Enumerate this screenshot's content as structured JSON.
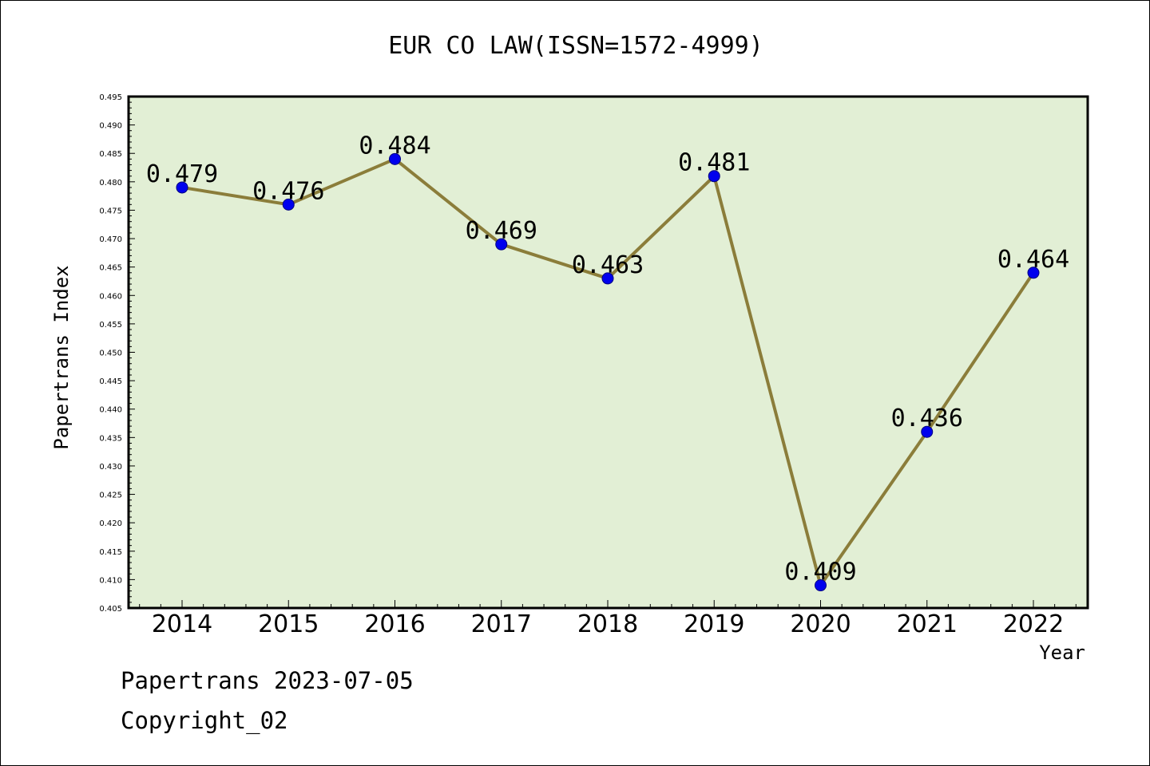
{
  "footer": {
    "line1": "Papertrans 2023-07-05",
    "line2": "Copyright_02"
  },
  "colors": {
    "plot_background": "#e2efd5",
    "line": "#8b7d3a",
    "marker": "#0000ee",
    "marker_edge": "#000080",
    "frame": "#000000"
  },
  "chart_data": {
    "type": "line",
    "title": "EUR CO LAW(ISSN=1572-4999)",
    "xlabel": "Year",
    "ylabel": "Papertrans Index",
    "categories": [
      "2014",
      "2015",
      "2016",
      "2017",
      "2018",
      "2019",
      "2020",
      "2021",
      "2022"
    ],
    "series": [
      {
        "values": [
          0.479,
          0.476,
          0.484,
          0.469,
          0.463,
          0.481,
          0.409,
          0.436,
          0.464
        ],
        "labels": [
          "0.479",
          "0.476",
          "0.484",
          "0.469",
          "0.463",
          "0.481",
          "0.409",
          "0.436",
          "0.464"
        ]
      }
    ],
    "ylim": [
      0.405,
      0.495
    ],
    "yticks": [
      "0.405",
      "0.410",
      "0.415",
      "0.420",
      "0.425",
      "0.430",
      "0.435",
      "0.440",
      "0.445",
      "0.450",
      "0.455",
      "0.460",
      "0.465",
      "0.470",
      "0.475",
      "0.480",
      "0.485",
      "0.490",
      "0.495"
    ],
    "grid": false,
    "legend": "none"
  }
}
